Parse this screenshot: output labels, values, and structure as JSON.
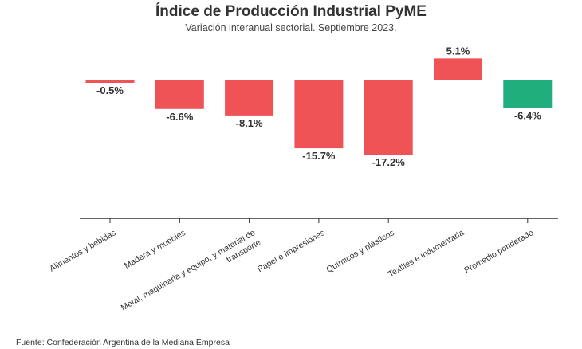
{
  "chart_data": {
    "type": "bar",
    "title": "Índice de Producción Industrial PyME",
    "subtitle": "Variación interanual sectorial. Septiembre 2023.",
    "source": "Fuente: Confederación Argentina de la Mediana Empresa",
    "categories": [
      [
        "Alimentos y bebidas"
      ],
      [
        "Madera y muebles"
      ],
      [
        "Metal, maquinaria y equipo, y material de",
        "transporte"
      ],
      [
        "Papel e impresiones"
      ],
      [
        "Químicos y plásticos"
      ],
      [
        "Textiles e indumentaria"
      ],
      [
        "Promedio ponderado"
      ]
    ],
    "values": [
      -0.5,
      -6.6,
      -8.1,
      -15.7,
      -17.2,
      5.1,
      -6.4
    ],
    "value_labels": [
      "-0.5%",
      "-6.6%",
      "-8.1%",
      "-15.7%",
      "-17.2%",
      "5.1%",
      "-6.4%"
    ],
    "colors": [
      "#ef5356",
      "#ef5356",
      "#ef5356",
      "#ef5356",
      "#ef5356",
      "#ef5356",
      "#1fae7c"
    ],
    "ylim": [
      -30.5,
      5.5
    ],
    "grid": false,
    "legend": "none"
  }
}
